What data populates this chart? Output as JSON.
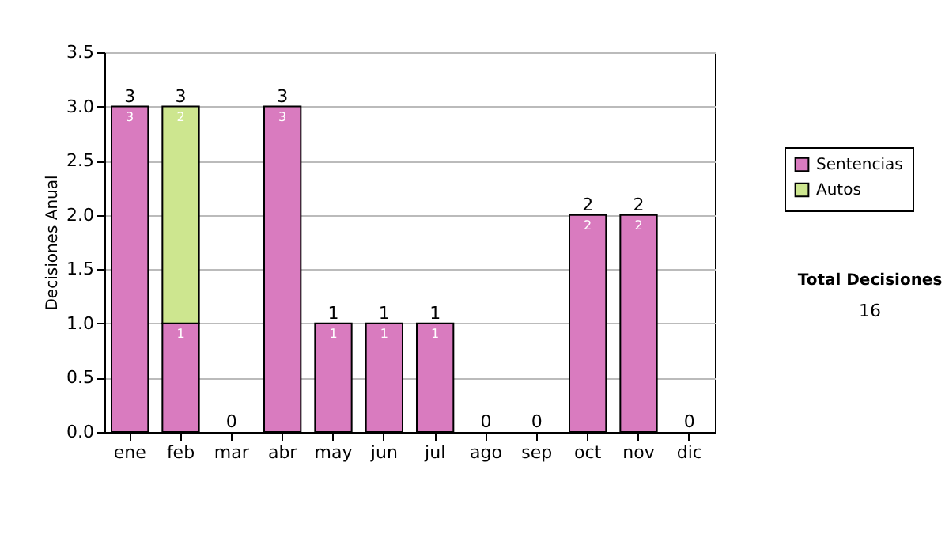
{
  "chart_data": {
    "type": "bar",
    "stacked": true,
    "ylabel": "Decisiones Anual",
    "categories": [
      "ene",
      "feb",
      "mar",
      "abr",
      "may",
      "jun",
      "jul",
      "ago",
      "sep",
      "oct",
      "nov",
      "dic"
    ],
    "series": [
      {
        "name": "Sentencias",
        "color": "#d97bbf",
        "values": [
          3,
          1,
          0,
          3,
          1,
          1,
          1,
          0,
          0,
          2,
          2,
          0
        ],
        "value_labels": [
          "3",
          "1",
          null,
          "3",
          "1",
          "1",
          "1",
          null,
          null,
          "2",
          "2",
          null
        ]
      },
      {
        "name": "Autos",
        "color": "#cde68f",
        "values": [
          0,
          2,
          0,
          0,
          0,
          0,
          0,
          0,
          0,
          0,
          0,
          0
        ],
        "value_labels": [
          null,
          "2",
          null,
          null,
          null,
          null,
          null,
          null,
          null,
          null,
          null,
          null
        ]
      }
    ],
    "totals": [
      "3",
      "3",
      "0",
      "3",
      "1",
      "1",
      "1",
      "0",
      "0",
      "2",
      "2",
      "0"
    ],
    "ylim": [
      0,
      3.5
    ],
    "yticks": [
      {
        "value": 0,
        "label": "0.0"
      },
      {
        "value": 0.5,
        "label": "0.5"
      },
      {
        "value": 1,
        "label": "1.0"
      },
      {
        "value": 1.5,
        "label": "1.5"
      },
      {
        "value": 2,
        "label": "2.0"
      },
      {
        "value": 2.5,
        "label": "2.5"
      },
      {
        "value": 3,
        "label": "3.0"
      },
      {
        "value": 3.5,
        "label": "3.5"
      }
    ],
    "grid": "y",
    "legend": "right",
    "annotations": [
      "Total Decisiones",
      "16"
    ]
  }
}
